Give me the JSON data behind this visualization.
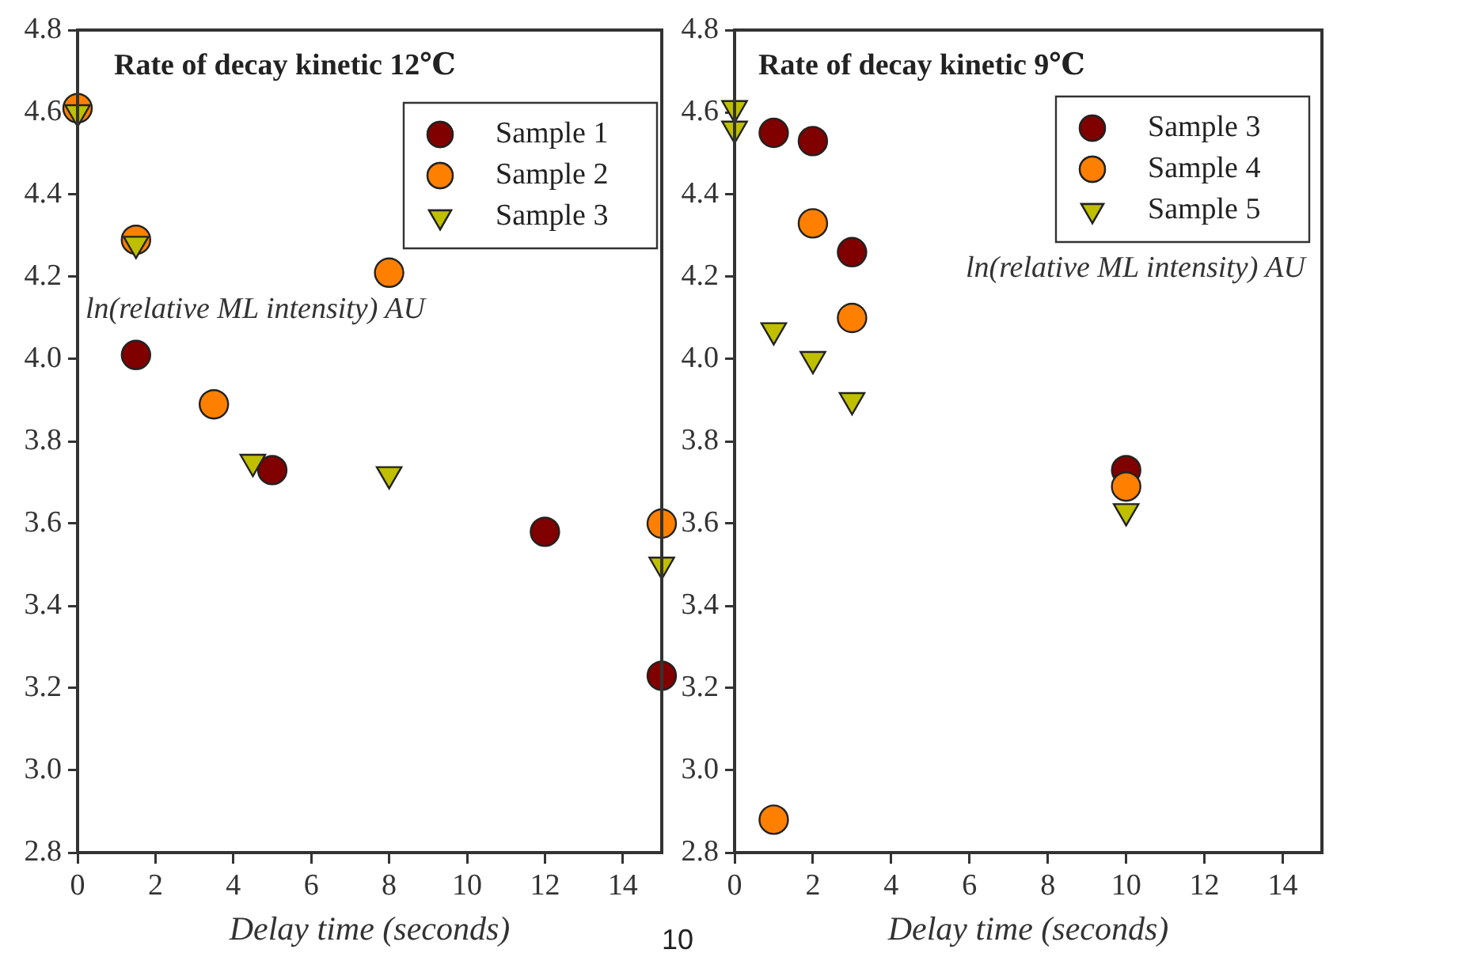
{
  "chart_data": [
    {
      "type": "scatter",
      "title": "Rate of decay kinetic 12℃",
      "xlabel": "Delay time (seconds)",
      "ylabel": "ln(relative ML intensity) AU",
      "xlim": [
        0,
        15
      ],
      "xticks": [
        0,
        2,
        4,
        6,
        8,
        10,
        12,
        14
      ],
      "ylim": [
        2.8,
        4.8
      ],
      "yticks": [
        {
          "value": 2.8,
          "label": "2.8"
        },
        {
          "value": 3,
          "label": "3.0"
        },
        {
          "value": 3.2,
          "label": "3.2"
        },
        {
          "value": 3.4,
          "label": "3.4"
        },
        {
          "value": 3.6,
          "label": "3.6"
        },
        {
          "value": 3.8,
          "label": "3.8"
        },
        {
          "value": 4,
          "label": "4.0"
        },
        {
          "value": 4.2,
          "label": "4.2"
        },
        {
          "value": 4.4,
          "label": "4.4"
        },
        {
          "value": 4.6,
          "label": "4.6"
        },
        {
          "value": 4.8,
          "label": "4.8"
        }
      ],
      "grid": false,
      "legend": "top right",
      "annotations": [
        "10"
      ],
      "series": [
        {
          "name": "Sample 1",
          "color": "#800000",
          "marker": "circle",
          "x": [
            1.5,
            5,
            12,
            15
          ],
          "values": [
            4.01,
            3.73,
            3.58,
            3.23
          ]
        },
        {
          "name": "Sample 2",
          "color": "#ff8000",
          "marker": "circle",
          "x": [
            0,
            1.5,
            3.5,
            8,
            15
          ],
          "values": [
            4.61,
            4.29,
            3.89,
            4.21,
            3.6
          ]
        },
        {
          "name": "Sample 3",
          "color": "#bfbf00",
          "marker": "triangle",
          "x": [
            0,
            1.5,
            4.5,
            8,
            15
          ],
          "values": [
            4.6,
            4.28,
            3.75,
            3.72,
            3.5
          ]
        }
      ]
    },
    {
      "type": "scatter",
      "title": "Rate of decay kinetic 9℃",
      "xlabel": "Delay time (seconds)",
      "ylabel": "ln(relative ML intensity) AU",
      "xlim": [
        0,
        15
      ],
      "xticks": [
        0,
        2,
        4,
        6,
        8,
        10,
        12,
        14
      ],
      "ylim": [
        2.8,
        4.8
      ],
      "yticks": [
        {
          "value": 2.8,
          "label": "2.8"
        },
        {
          "value": 3,
          "label": "3.0"
        },
        {
          "value": 3.2,
          "label": "3.2"
        },
        {
          "value": 3.4,
          "label": "3.4"
        },
        {
          "value": 3.6,
          "label": "3.6"
        },
        {
          "value": 3.8,
          "label": "3.8"
        },
        {
          "value": 4,
          "label": "4.0"
        },
        {
          "value": 4.2,
          "label": "4.2"
        },
        {
          "value": 4.4,
          "label": "4.4"
        },
        {
          "value": 4.6,
          "label": "4.6"
        },
        {
          "value": 4.8,
          "label": "4.8"
        }
      ],
      "grid": false,
      "legend": "top right",
      "series": [
        {
          "name": "Sample 3",
          "color": "#800000",
          "marker": "circle",
          "x": [
            1,
            2,
            3,
            10
          ],
          "values": [
            4.55,
            4.53,
            4.26,
            3.73
          ]
        },
        {
          "name": "Sample 4",
          "color": "#ff8000",
          "marker": "circle",
          "x": [
            1,
            2,
            3,
            10
          ],
          "values": [
            2.88,
            4.33,
            4.1,
            3.69
          ]
        },
        {
          "name": "Sample 5",
          "color": "#bfbf00",
          "marker": "triangle",
          "x": [
            0,
            0,
            1,
            2,
            3,
            10
          ],
          "values": [
            4.61,
            4.56,
            4.07,
            4.0,
            3.9,
            3.63
          ]
        }
      ]
    }
  ]
}
